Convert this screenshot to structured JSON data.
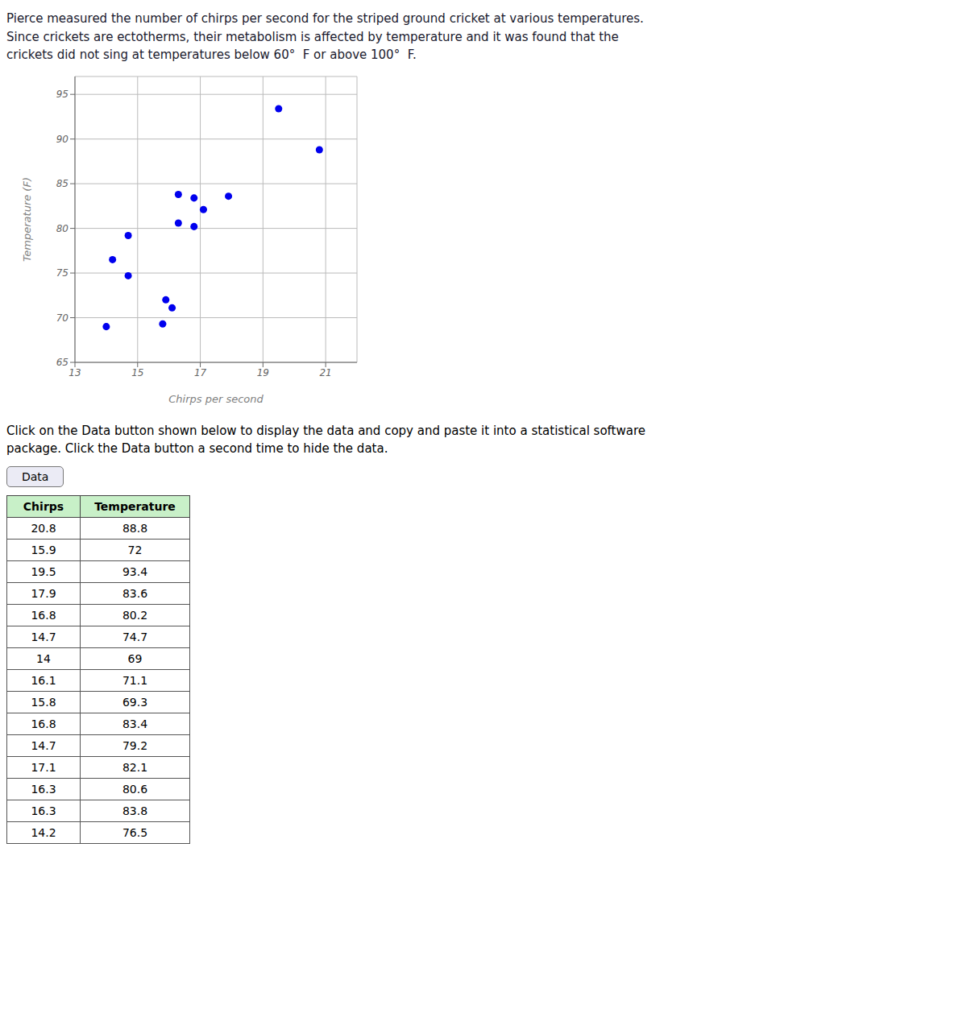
{
  "chart_data": {
    "type": "scatter",
    "annotations": [
      "Pierce measured the number of chirps per second for the striped ground cricket at various temperatures.\nSince crickets are ectotherms, their metabolism is affected by temperature and it was found that the\ncrickets did not sing at temperatures below 60°  F or above 100°  F.",
      "Click on the Data button shown below to display the data and copy and paste it into a statistical software\npackage. Click the Data button a second time to hide the data.",
      "Data"
    ],
    "table_columns": [
      "Chirps",
      "Temperature"
    ],
    "x": [
      20.8,
      15.9,
      19.5,
      17.9,
      16.8,
      14.7,
      14.0,
      16.1,
      15.8,
      16.8,
      14.7,
      17.1,
      16.3,
      16.3,
      14.2
    ],
    "values": [
      88.8,
      72.0,
      93.4,
      83.6,
      80.2,
      74.7,
      69.0,
      71.1,
      69.3,
      83.4,
      79.2,
      82.1,
      80.6,
      83.8,
      76.5
    ],
    "color": "#0000EE",
    "xlabel": "Chirps per second",
    "ylabel": "Temperature (F)",
    "xlim": [
      13,
      22
    ],
    "ylim": [
      65,
      97
    ],
    "xticks": [
      13,
      15,
      17,
      19,
      21
    ],
    "yticks": [
      65,
      70,
      75,
      80,
      85,
      90,
      95
    ],
    "grid": true
  }
}
